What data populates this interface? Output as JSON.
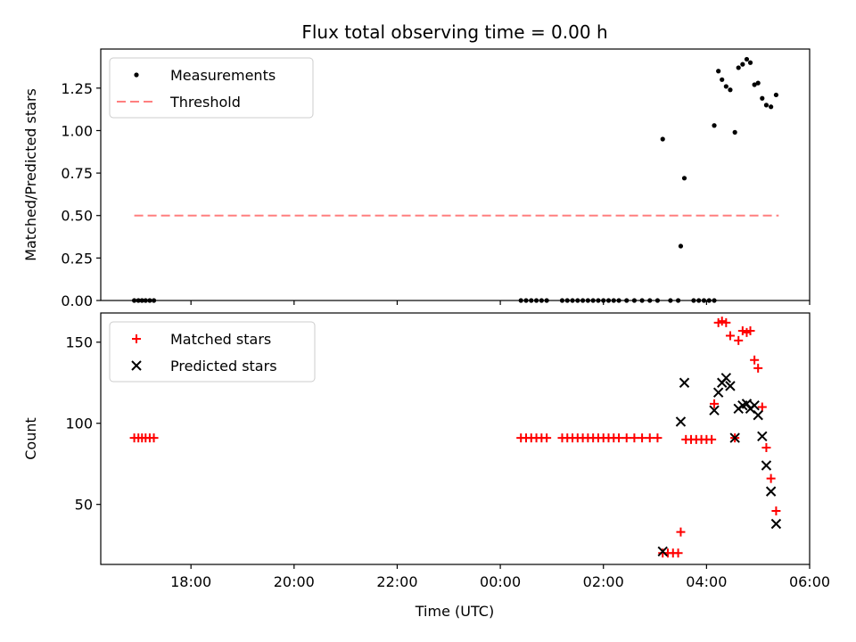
{
  "chart_data": {
    "type": "scatter",
    "title": "Flux total observing time = 0.00 h",
    "xlabel": "Time (UTC)",
    "x_unit": "hours since 16:00 UTC",
    "xlim": [
      0.25,
      14.0
    ],
    "xticks": [
      {
        "x": 2,
        "label": "18:00"
      },
      {
        "x": 4,
        "label": "20:00"
      },
      {
        "x": 6,
        "label": "22:00"
      },
      {
        "x": 8,
        "label": "00:00"
      },
      {
        "x": 10,
        "label": "02:00"
      },
      {
        "x": 12,
        "label": "04:00"
      },
      {
        "x": 14,
        "label": "06:00"
      }
    ],
    "panels": [
      {
        "ylabel": "Matched/Predicted stars",
        "ylim": [
          0.0,
          1.48
        ],
        "yticks": [
          "0.00",
          "0.25",
          "0.50",
          "0.75",
          "1.00",
          "1.25"
        ],
        "legend": {
          "placement": "upper-left",
          "entries": [
            "Measurements",
            "Threshold"
          ]
        },
        "threshold": {
          "name": "Threshold",
          "value": 0.5,
          "x_start": 0.9,
          "x_end": 13.4,
          "color": "#ff7f7f",
          "style": "dashed"
        },
        "series": [
          {
            "name": "Measurements",
            "marker": "dot",
            "color": "#000000",
            "points": [
              [
                0.9,
                0
              ],
              [
                0.98,
                0
              ],
              [
                1.05,
                0
              ],
              [
                1.12,
                0
              ],
              [
                1.2,
                0
              ],
              [
                1.28,
                0
              ],
              [
                8.4,
                0
              ],
              [
                8.5,
                0
              ],
              [
                8.6,
                0
              ],
              [
                8.7,
                0
              ],
              [
                8.8,
                0
              ],
              [
                8.9,
                0
              ],
              [
                9.2,
                0
              ],
              [
                9.3,
                0
              ],
              [
                9.4,
                0
              ],
              [
                9.5,
                0
              ],
              [
                9.6,
                0
              ],
              [
                9.7,
                0
              ],
              [
                9.8,
                0
              ],
              [
                9.9,
                0
              ],
              [
                10.0,
                0
              ],
              [
                10.1,
                0
              ],
              [
                10.2,
                0
              ],
              [
                10.3,
                0
              ],
              [
                10.45,
                0
              ],
              [
                10.6,
                0
              ],
              [
                10.75,
                0
              ],
              [
                10.9,
                0
              ],
              [
                11.05,
                0
              ],
              [
                11.3,
                0
              ],
              [
                11.45,
                0
              ],
              [
                11.75,
                0
              ],
              [
                11.85,
                0
              ],
              [
                11.95,
                0
              ],
              [
                12.05,
                0
              ],
              [
                12.15,
                0
              ],
              [
                11.15,
                0.95
              ],
              [
                11.5,
                0.32
              ],
              [
                11.57,
                0.72
              ],
              [
                12.15,
                1.03
              ],
              [
                12.23,
                1.35
              ],
              [
                12.3,
                1.3
              ],
              [
                12.38,
                1.26
              ],
              [
                12.46,
                1.24
              ],
              [
                12.55,
                0.99
              ],
              [
                12.62,
                1.37
              ],
              [
                12.7,
                1.39
              ],
              [
                12.78,
                1.42
              ],
              [
                12.85,
                1.4
              ],
              [
                12.93,
                1.27
              ],
              [
                13.0,
                1.28
              ],
              [
                13.08,
                1.19
              ],
              [
                13.16,
                1.15
              ],
              [
                13.25,
                1.14
              ],
              [
                13.35,
                1.21
              ]
            ]
          }
        ]
      },
      {
        "ylabel": "Count",
        "ylim": [
          13,
          168
        ],
        "yticks": [
          "50",
          "100",
          "150"
        ],
        "legend": {
          "placement": "upper-left",
          "entries": [
            "Matched stars",
            "Predicted stars"
          ]
        },
        "series": [
          {
            "name": "Matched stars",
            "marker": "plus",
            "color": "#ff0000",
            "points": [
              [
                0.9,
                91
              ],
              [
                0.98,
                91
              ],
              [
                1.05,
                91
              ],
              [
                1.12,
                91
              ],
              [
                1.2,
                91
              ],
              [
                1.28,
                91
              ],
              [
                8.4,
                91
              ],
              [
                8.5,
                91
              ],
              [
                8.6,
                91
              ],
              [
                8.7,
                91
              ],
              [
                8.8,
                91
              ],
              [
                8.9,
                91
              ],
              [
                9.2,
                91
              ],
              [
                9.3,
                91
              ],
              [
                9.4,
                91
              ],
              [
                9.5,
                91
              ],
              [
                9.6,
                91
              ],
              [
                9.7,
                91
              ],
              [
                9.8,
                91
              ],
              [
                9.9,
                91
              ],
              [
                10.0,
                91
              ],
              [
                10.1,
                91
              ],
              [
                10.2,
                91
              ],
              [
                10.3,
                91
              ],
              [
                10.45,
                91
              ],
              [
                10.6,
                91
              ],
              [
                10.75,
                91
              ],
              [
                10.9,
                91
              ],
              [
                11.05,
                91
              ],
              [
                11.15,
                20
              ],
              [
                11.25,
                20
              ],
              [
                11.35,
                20
              ],
              [
                11.45,
                20
              ],
              [
                11.5,
                33
              ],
              [
                11.6,
                90
              ],
              [
                11.7,
                90
              ],
              [
                11.8,
                90
              ],
              [
                11.9,
                90
              ],
              [
                12.0,
                90
              ],
              [
                12.1,
                90
              ],
              [
                12.15,
                112
              ],
              [
                12.23,
                162
              ],
              [
                12.3,
                163
              ],
              [
                12.38,
                162
              ],
              [
                12.46,
                154
              ],
              [
                12.55,
                91
              ],
              [
                12.62,
                151
              ],
              [
                12.7,
                157
              ],
              [
                12.78,
                156
              ],
              [
                12.85,
                157
              ],
              [
                12.93,
                139
              ],
              [
                13.0,
                134
              ],
              [
                13.08,
                110
              ],
              [
                13.16,
                85
              ],
              [
                13.25,
                66
              ],
              [
                13.35,
                46
              ]
            ]
          },
          {
            "name": "Predicted stars",
            "marker": "x",
            "color": "#000000",
            "points": [
              [
                11.15,
                21
              ],
              [
                11.5,
                101
              ],
              [
                11.57,
                125
              ],
              [
                12.15,
                108
              ],
              [
                12.23,
                119
              ],
              [
                12.3,
                125
              ],
              [
                12.38,
                128
              ],
              [
                12.46,
                123
              ],
              [
                12.55,
                91
              ],
              [
                12.62,
                109
              ],
              [
                12.7,
                111
              ],
              [
                12.78,
                112
              ],
              [
                12.85,
                109
              ],
              [
                12.93,
                111
              ],
              [
                13.0,
                105
              ],
              [
                13.08,
                92
              ],
              [
                13.16,
                74
              ],
              [
                13.25,
                58
              ],
              [
                13.35,
                38
              ]
            ]
          }
        ]
      }
    ]
  }
}
